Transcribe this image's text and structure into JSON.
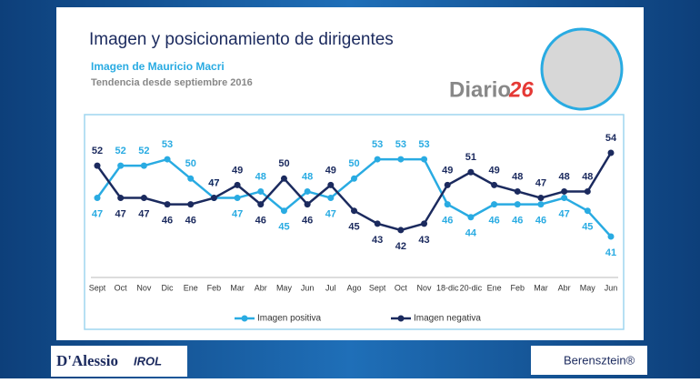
{
  "chart_data": {
    "type": "line",
    "title": "Imagen y posicionamiento de dirigentes",
    "subtitle": "Imagen de Mauricio Macri",
    "caption": "Tendencia desde septiembre 2016",
    "categories": [
      "Sept",
      "Oct",
      "Nov",
      "Dic",
      "Ene",
      "Feb",
      "Mar",
      "Abr",
      "May",
      "Jun",
      "Jul",
      "Ago",
      "Sept",
      "Oct",
      "Nov",
      "18-dic",
      "20-dic",
      "Ene",
      "Feb",
      "Mar",
      "Abr",
      "May",
      "Jun"
    ],
    "series": [
      {
        "name": "Imagen positiva",
        "color": "#29abe2",
        "values": [
          47,
          52,
          52,
          53,
          50,
          47,
          47,
          48,
          45,
          48,
          47,
          50,
          53,
          53,
          53,
          46,
          44,
          46,
          46,
          46,
          47,
          45,
          41
        ]
      },
      {
        "name": "Imagen negativa",
        "color": "#1b2a5e",
        "values": [
          52,
          47,
          47,
          46,
          46,
          47,
          49,
          46,
          50,
          46,
          49,
          45,
          43,
          42,
          43,
          49,
          51,
          49,
          48,
          47,
          48,
          48,
          54
        ]
      }
    ],
    "legend": "bottom"
  },
  "logos": {
    "diario": "Diario",
    "diario_number": "26",
    "dalessio": "D'Alessio",
    "irol": "IROL",
    "berensztein": "Berensztein®"
  }
}
